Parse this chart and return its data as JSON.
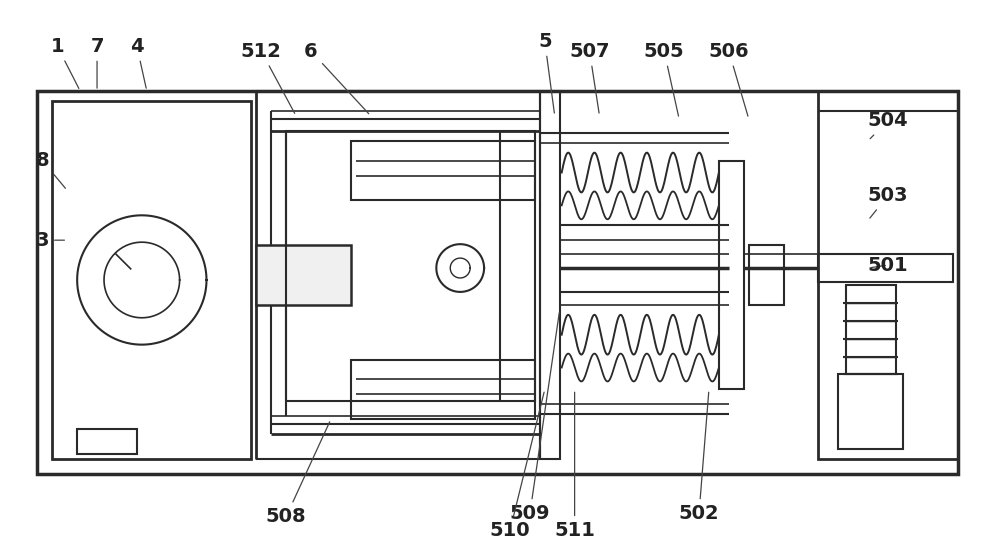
{
  "background_color": "#ffffff",
  "line_color": "#2a2a2a",
  "figure_width": 10.0,
  "figure_height": 5.5
}
